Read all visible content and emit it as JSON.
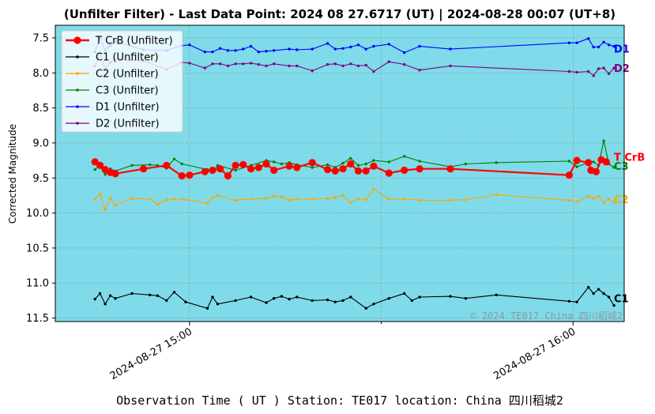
{
  "chart_data": {
    "type": "line",
    "title": "(Unfilter Filter) - Last Data Point: 2024 08 27.6717 (UT) | 2024-08-28 00:07 (UT+8)",
    "xlabel": "Observation Time ( UT )  Station: TE017 location: China 四川稻城2",
    "ylabel": "Corrected Magnitude",
    "x_ticks": [
      "2024-08-27 15:00",
      "2024-08-27 16:00"
    ],
    "y_ticks": [
      "7.5",
      "8.0",
      "8.5",
      "9.0",
      "9.5",
      "10.0",
      "10.5",
      "11.0",
      "11.5"
    ],
    "y_inverted": true,
    "ylim": [
      11.55,
      7.32
    ],
    "xlim": [
      "2024-08-27 14:39",
      "2024-08-27 16:08"
    ],
    "grid": true,
    "legend_position": "top-left",
    "watermark": "© 2024 TE017 China 四川稻城2",
    "background_color": "#7fdbe9",
    "series": [
      {
        "name": "T CrB (Unfilter)",
        "end_label": "T CrB",
        "color": "#ff0000",
        "x": [
          "14:45:12",
          "14:46:00",
          "14:46:48",
          "14:47:36",
          "14:48:24",
          "14:52:48",
          "14:56:24",
          "14:58:48",
          "15:00:00",
          "15:02:24",
          "15:03:36",
          "15:04:48",
          "15:06:00",
          "15:07:12",
          "15:08:24",
          "15:09:36",
          "15:10:48",
          "15:12:00",
          "15:13:12",
          "15:15:36",
          "15:16:48",
          "15:19:12",
          "15:21:36",
          "15:22:48",
          "15:24:00",
          "15:25:12",
          "15:26:24",
          "15:27:36",
          "15:28:48",
          "15:31:12",
          "15:33:36",
          "15:36:00",
          "15:40:48",
          "15:59:24",
          "16:00:36",
          "16:02:24",
          "16:02:48",
          "16:03:36",
          "16:04:24",
          "16:05:12"
        ],
        "y": [
          9.27,
          9.32,
          9.38,
          9.42,
          9.44,
          9.37,
          9.32,
          9.47,
          9.46,
          9.41,
          9.39,
          9.37,
          9.47,
          9.32,
          9.31,
          9.37,
          9.35,
          9.3,
          9.39,
          9.33,
          9.35,
          9.28,
          9.38,
          9.4,
          9.37,
          9.3,
          9.4,
          9.4,
          9.33,
          9.43,
          9.39,
          9.37,
          9.37,
          9.46,
          9.25,
          9.28,
          9.39,
          9.41,
          9.24,
          9.27
        ]
      },
      {
        "name": "C1 (Unfilter)",
        "end_label": "C1",
        "color": "#000000",
        "x": [
          "14:45:12",
          "14:46:00",
          "14:46:48",
          "14:47:36",
          "14:48:24",
          "14:51:00",
          "14:53:48",
          "14:55:00",
          "14:56:24",
          "14:57:36",
          "14:59:24",
          "15:02:48",
          "15:03:36",
          "15:04:24",
          "15:07:12",
          "15:09:36",
          "15:12:00",
          "15:13:12",
          "15:14:24",
          "15:15:36",
          "15:16:48",
          "15:19:12",
          "15:21:36",
          "15:22:48",
          "15:24:00",
          "15:25:12",
          "15:27:36",
          "15:28:48",
          "15:31:12",
          "15:33:36",
          "15:34:48",
          "15:36:00",
          "15:40:48",
          "15:43:12",
          "15:48:00",
          "15:59:24",
          "16:00:36",
          "16:02:24",
          "16:03:12",
          "16:04:00",
          "16:04:48",
          "16:05:36",
          "16:06:24"
        ],
        "y": [
          11.23,
          11.15,
          11.3,
          11.18,
          11.22,
          11.15,
          11.17,
          11.18,
          11.25,
          11.13,
          11.27,
          11.36,
          11.2,
          11.3,
          11.25,
          11.2,
          11.28,
          11.22,
          11.19,
          11.23,
          11.2,
          11.25,
          11.24,
          11.27,
          11.25,
          11.2,
          11.36,
          11.3,
          11.22,
          11.15,
          11.25,
          11.2,
          11.19,
          11.22,
          11.17,
          11.26,
          11.27,
          11.06,
          11.15,
          11.09,
          11.15,
          11.2,
          11.32
        ]
      },
      {
        "name": "C2 (Unfilter)",
        "end_label": "C2",
        "color": "#ffa500",
        "x": [
          "14:45:12",
          "14:46:00",
          "14:46:48",
          "14:47:36",
          "14:48:24",
          "14:51:00",
          "14:53:48",
          "14:55:00",
          "14:56:24",
          "14:57:36",
          "14:58:48",
          "15:02:48",
          "15:03:36",
          "15:04:24",
          "15:07:12",
          "15:09:36",
          "15:12:00",
          "15:13:12",
          "15:14:24",
          "15:15:36",
          "15:16:48",
          "15:19:12",
          "15:21:36",
          "15:22:48",
          "15:24:00",
          "15:25:12",
          "15:26:24",
          "15:27:36",
          "15:28:48",
          "15:31:12",
          "15:33:36",
          "15:36:00",
          "15:40:48",
          "15:43:12",
          "15:48:00",
          "15:59:24",
          "16:00:36",
          "16:02:24",
          "16:03:12",
          "16:04:00",
          "16:04:48",
          "16:05:36",
          "16:06:24"
        ],
        "y": [
          9.8,
          9.73,
          9.95,
          9.79,
          9.89,
          9.79,
          9.8,
          9.88,
          9.81,
          9.8,
          9.8,
          9.86,
          9.78,
          9.75,
          9.82,
          9.8,
          9.79,
          9.76,
          9.77,
          9.82,
          9.8,
          9.8,
          9.79,
          9.78,
          9.75,
          9.85,
          9.8,
          9.81,
          9.66,
          9.8,
          9.8,
          9.82,
          9.82,
          9.81,
          9.74,
          9.82,
          9.84,
          9.76,
          9.79,
          9.76,
          9.85,
          9.8,
          9.85
        ]
      },
      {
        "name": "C3 (Unfilter)",
        "end_label": "C3",
        "color": "#008000",
        "x": [
          "14:45:12",
          "14:46:00",
          "14:46:48",
          "14:47:36",
          "14:48:24",
          "14:51:00",
          "14:53:48",
          "14:55:00",
          "14:56:24",
          "14:57:36",
          "14:58:48",
          "15:02:48",
          "15:03:36",
          "15:04:24",
          "15:07:12",
          "15:09:36",
          "15:12:00",
          "15:13:12",
          "15:14:24",
          "15:15:36",
          "15:16:48",
          "15:19:12",
          "15:21:36",
          "15:22:48",
          "15:24:00",
          "15:25:12",
          "15:26:24",
          "15:27:36",
          "15:28:48",
          "15:31:12",
          "15:33:36",
          "15:36:00",
          "15:40:48",
          "15:43:12",
          "15:48:00",
          "15:59:24",
          "16:00:36",
          "16:02:24",
          "16:03:12",
          "16:04:00",
          "16:04:48",
          "16:05:36",
          "16:06:24"
        ],
        "y": [
          9.38,
          9.32,
          9.45,
          9.37,
          9.4,
          9.32,
          9.31,
          9.32,
          9.36,
          9.23,
          9.3,
          9.38,
          9.42,
          9.32,
          9.39,
          9.32,
          9.25,
          9.27,
          9.3,
          9.28,
          9.31,
          9.35,
          9.31,
          9.35,
          9.29,
          9.22,
          9.32,
          9.3,
          9.25,
          9.27,
          9.19,
          9.26,
          9.34,
          9.3,
          9.28,
          9.26,
          9.34,
          9.28,
          9.27,
          9.32,
          8.97,
          9.3,
          9.35
        ]
      },
      {
        "name": "D1 (Unfilter)",
        "end_label": "D1",
        "color": "#0000ff",
        "x": [
          "14:45:12",
          "14:46:00",
          "14:46:48",
          "14:47:36",
          "14:48:24",
          "14:52:48",
          "14:56:24",
          "14:58:48",
          "15:00:00",
          "15:02:24",
          "15:03:36",
          "15:04:48",
          "15:06:00",
          "15:07:12",
          "15:08:24",
          "15:09:36",
          "15:10:48",
          "15:12:00",
          "15:13:12",
          "15:15:36",
          "15:16:48",
          "15:19:12",
          "15:21:36",
          "15:22:48",
          "15:24:00",
          "15:25:12",
          "15:26:24",
          "15:27:36",
          "15:28:48",
          "15:31:12",
          "15:33:36",
          "15:36:00",
          "15:40:48",
          "15:59:24",
          "16:00:36",
          "16:02:24",
          "16:03:12",
          "16:04:00",
          "16:04:48",
          "16:05:36",
          "16:06:24"
        ],
        "y": [
          7.7,
          7.5,
          7.68,
          7.6,
          7.55,
          7.67,
          7.68,
          7.61,
          7.6,
          7.7,
          7.7,
          7.65,
          7.68,
          7.68,
          7.66,
          7.62,
          7.7,
          7.69,
          7.68,
          7.66,
          7.67,
          7.66,
          7.58,
          7.66,
          7.65,
          7.63,
          7.6,
          7.66,
          7.62,
          7.59,
          7.71,
          7.62,
          7.66,
          7.57,
          7.57,
          7.51,
          7.63,
          7.63,
          7.56,
          7.6,
          7.62
        ]
      },
      {
        "name": "D2 (Unfilter)",
        "end_label": "D2",
        "color": "#800080",
        "x": [
          "14:45:12",
          "14:46:00",
          "14:46:48",
          "14:47:36",
          "14:48:24",
          "14:52:48",
          "14:56:24",
          "14:58:48",
          "15:00:00",
          "15:02:24",
          "15:03:36",
          "15:04:48",
          "15:06:00",
          "15:07:12",
          "15:08:24",
          "15:09:36",
          "15:10:48",
          "15:12:00",
          "15:13:12",
          "15:15:36",
          "15:16:48",
          "15:19:12",
          "15:21:36",
          "15:22:48",
          "15:24:00",
          "15:25:12",
          "15:26:24",
          "15:27:36",
          "15:28:48",
          "15:31:12",
          "15:33:36",
          "15:36:00",
          "15:40:48",
          "15:59:24",
          "16:00:36",
          "16:02:24",
          "16:03:12",
          "16:04:00",
          "16:04:48",
          "16:05:36",
          "16:06:24"
        ],
        "y": [
          7.9,
          7.72,
          7.95,
          7.85,
          7.8,
          7.83,
          7.95,
          7.85,
          7.86,
          7.93,
          7.87,
          7.87,
          7.9,
          7.87,
          7.87,
          7.86,
          7.88,
          7.9,
          7.87,
          7.9,
          7.9,
          7.97,
          7.88,
          7.87,
          7.9,
          7.87,
          7.9,
          7.89,
          7.98,
          7.84,
          7.88,
          7.96,
          7.9,
          7.98,
          7.99,
          7.98,
          8.04,
          7.94,
          7.93,
          8.01,
          7.93
        ]
      }
    ]
  }
}
